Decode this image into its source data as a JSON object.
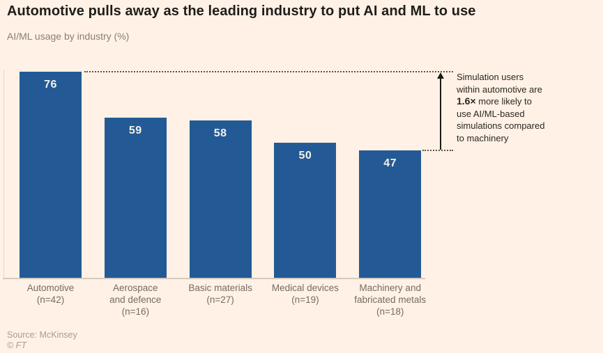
{
  "header": {
    "title": "Automotive pulls away as the leading industry to put AI and ML to use",
    "subtitle": "AI/ML usage by industry (%)"
  },
  "chart_data": {
    "type": "bar",
    "title": "Automotive pulls away as the leading industry to put AI and ML to use",
    "subtitle": "AI/ML usage by industry (%)",
    "categories": [
      {
        "lines": [
          "Automotive",
          "(n=42)"
        ]
      },
      {
        "lines": [
          "Aerospace",
          "and defence",
          "(n=16)"
        ]
      },
      {
        "lines": [
          "Basic materials",
          "(n=27)"
        ]
      },
      {
        "lines": [
          "Medical devices",
          "(n=19)"
        ]
      },
      {
        "lines": [
          "Machinery and",
          "fabricated metals",
          "(n=18)"
        ]
      }
    ],
    "values": [
      76,
      59,
      58,
      50,
      47
    ],
    "xlabel": "",
    "ylabel": "AI/ML usage by industry (%)",
    "grid": false,
    "legend": false,
    "bar_color": "#235A96",
    "background_color": "#FFF1E5"
  },
  "annotation": {
    "segments": [
      {
        "text": "Simulation users within automotive are ",
        "bold": false
      },
      {
        "text": "1.6×",
        "bold": true
      },
      {
        "text": " more likely to use AI/ML-based simulations compared to machinery",
        "bold": false
      }
    ]
  },
  "footer": {
    "source": "Source: McKinsey",
    "credit": "© FT"
  }
}
